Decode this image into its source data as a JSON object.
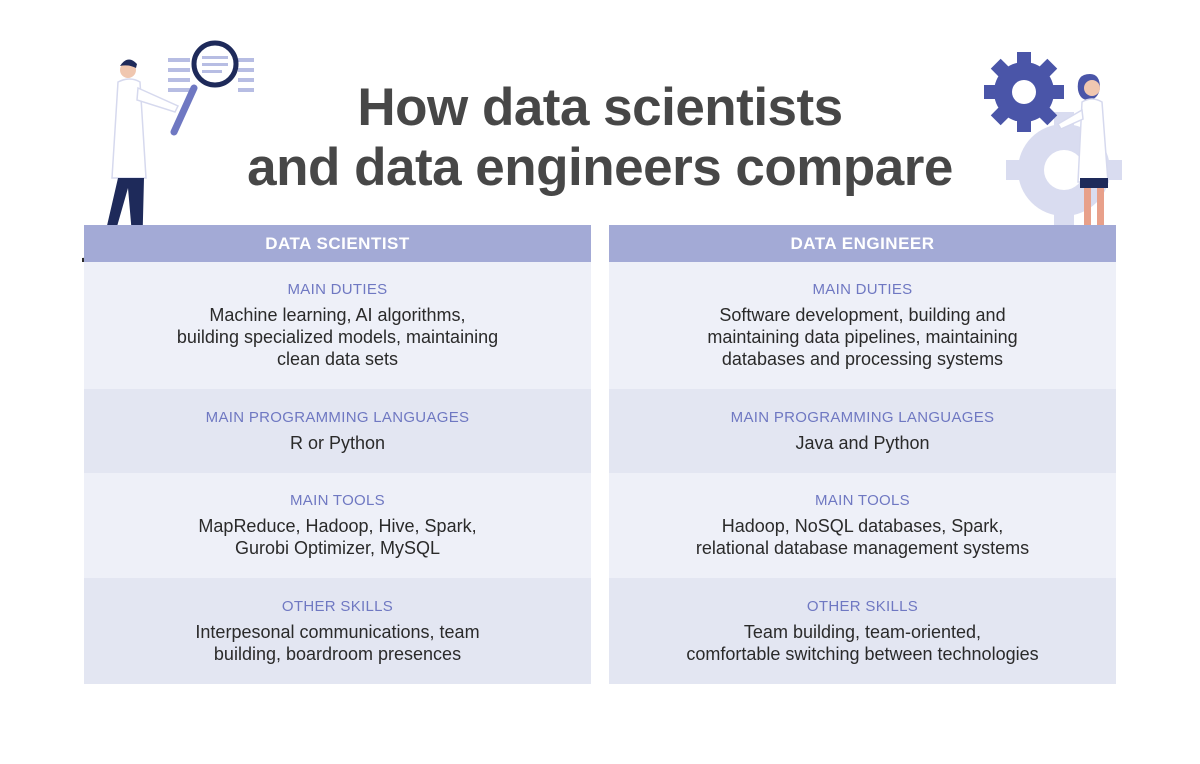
{
  "title": {
    "line1": "How data scientists",
    "line2": "and data engineers compare"
  },
  "columns": [
    {
      "header": "DATA SCIENTIST",
      "sections": [
        {
          "label": "MAIN DUTIES",
          "text": "Machine learning, AI algorithms,\nbuilding specialized models, maintaining\nclean data sets"
        },
        {
          "label": "MAIN PROGRAMMING LANGUAGES",
          "text": "R or Python"
        },
        {
          "label": "MAIN TOOLS",
          "text": "MapReduce, Hadoop, Hive, Spark,\nGurobi Optimizer, MySQL"
        },
        {
          "label": "OTHER SKILLS",
          "text": "Interpesonal communications, team\nbuilding, boardroom presences"
        }
      ]
    },
    {
      "header": "DATA ENGINEER",
      "sections": [
        {
          "label": "MAIN DUTIES",
          "text": "Software development, building and\nmaintaining data pipelines, maintaining\ndatabases and processing systems"
        },
        {
          "label": "MAIN PROGRAMMING LANGUAGES",
          "text": "Java and Python"
        },
        {
          "label": "MAIN TOOLS",
          "text": "Hadoop, NoSQL databases, Spark,\nrelational database management systems"
        },
        {
          "label": "OTHER SKILLS",
          "text": "Team building, team-oriented,\ncomfortable switching between technologies"
        }
      ]
    }
  ],
  "colors": {
    "header_bg": "#a3aad6",
    "label": "#6f78c2",
    "row_light": "#eef0f8",
    "row_dark": "#e3e6f2",
    "illustration_accent": "#4a55a8"
  }
}
